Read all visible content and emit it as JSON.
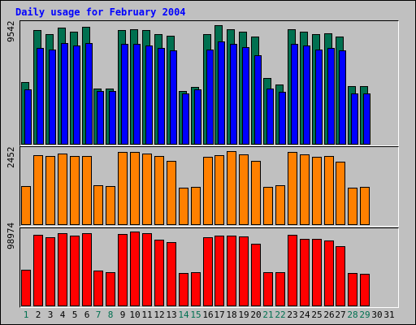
{
  "chart_data": {
    "type": "bar",
    "title": "Daily usage for February 2004",
    "categories": [
      "1",
      "2",
      "3",
      "4",
      "5",
      "6",
      "7",
      "8",
      "9",
      "10",
      "11",
      "12",
      "13",
      "14",
      "15",
      "16",
      "17",
      "18",
      "19",
      "20",
      "21",
      "22",
      "23",
      "24",
      "25",
      "26",
      "27",
      "28",
      "29",
      "30",
      "31"
    ],
    "weekend_days": [
      "1",
      "7",
      "8",
      "14",
      "15",
      "21",
      "22",
      "28",
      "29"
    ],
    "panels": [
      {
        "ylabel": "9542",
        "max": 9542,
        "series": [
          {
            "values": [
              4900,
              9000,
              8700,
              9200,
              8900,
              9300,
              4400,
              4400,
              9000,
              9100,
              9000,
              8700,
              8600,
              4200,
              4500,
              8700,
              9400,
              9100,
              8900,
              8500,
              5200,
              4700,
              9100,
              8900,
              8700,
              8800,
              8500,
              4600,
              4600,
              0,
              0
            ]
          },
          {
            "values": [
              4300,
              7600,
              7500,
              8000,
              7800,
              8000,
              4200,
              4200,
              7900,
              7900,
              7800,
              7600,
              7400,
              4000,
              4300,
              7500,
              8100,
              7900,
              7700,
              7000,
              4400,
              4100,
              7900,
              7800,
              7500,
              7600,
              7400,
              4000,
              4000,
              0,
              0
            ]
          }
        ],
        "colors": [
          "#007050",
          "#0000ff"
        ]
      },
      {
        "ylabel": "2452",
        "max": 2452,
        "series": [
          {
            "values": [
              1260,
              2270,
              2230,
              2330,
              2230,
              2230,
              1290,
              1250,
              2360,
              2370,
              2320,
              2240,
              2080,
              1200,
              1220,
              2210,
              2260,
              2400,
              2280,
              2070,
              1230,
              1290,
              2380,
              2290,
              2210,
              2240,
              2040,
              1190,
              1220,
              0,
              0
            ]
          }
        ],
        "colors": [
          "#ff8000"
        ]
      },
      {
        "ylabel": "98974",
        "max": 98974,
        "series": [
          {
            "values": [
              47000,
              94000,
              90000,
              96000,
              92000,
              96000,
              46000,
              44000,
              95000,
              98000,
              96000,
              87000,
              84000,
              43000,
              44000,
              90000,
              93000,
              93000,
              91000,
              82000,
              44000,
              44000,
              94000,
              88000,
              88000,
              86000,
              79000,
              43000,
              42000,
              0,
              0
            ]
          }
        ],
        "colors": [
          "#ff0000"
        ]
      }
    ],
    "colors": {
      "border": "#000000",
      "background": "#c0c0c0",
      "title": "#0000ff",
      "weekday_label": "#000000",
      "weekend_label": "#007050"
    }
  }
}
